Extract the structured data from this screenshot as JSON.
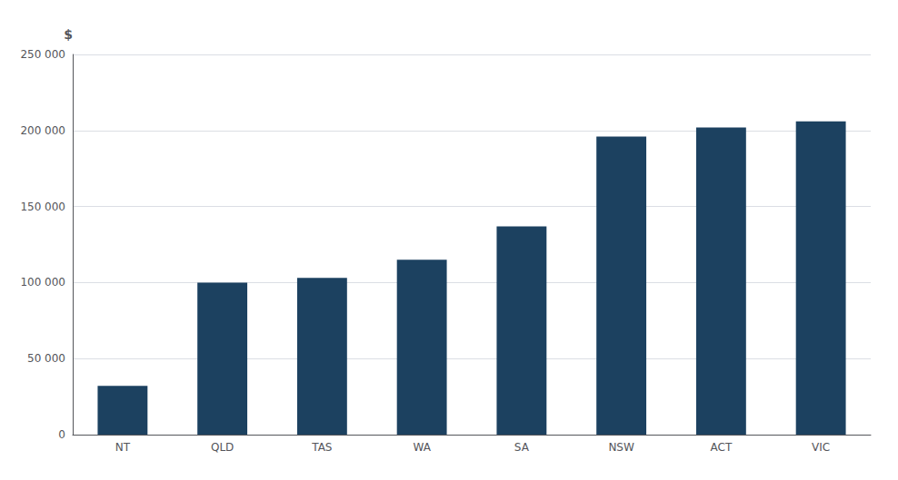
{
  "chart_data": {
    "type": "bar",
    "ylabel": "$",
    "categories": [
      "NT",
      "QLD",
      "TAS",
      "WA",
      "SA",
      "NSW",
      "ACT",
      "VIC"
    ],
    "values": [
      32000,
      100000,
      103000,
      115000,
      137000,
      196000,
      202000,
      206000
    ],
    "color": "#1c4160",
    "ylim": [
      0,
      250000
    ],
    "yticks": [
      0,
      {
        "value": 50000,
        "label": "50 000"
      },
      {
        "value": 100000,
        "label": "100 000"
      },
      {
        "value": 150000,
        "label": "150 000"
      },
      {
        "value": 200000,
        "label": "200 000"
      },
      {
        "value": 250000,
        "label": "250 000"
      }
    ],
    "grid": true
  }
}
